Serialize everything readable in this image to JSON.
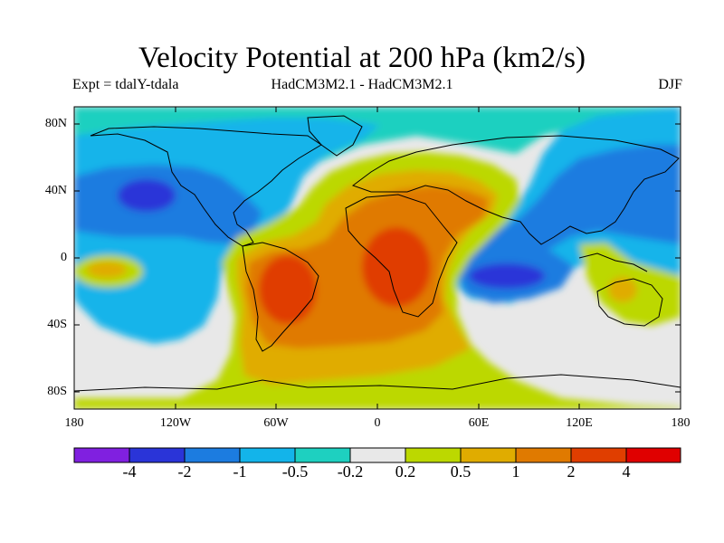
{
  "title": "Velocity Potential at 200 hPa (km2/s)",
  "subtitle_left": "Expt = tdalY-tdala",
  "subtitle_center": "HadCM3M2.1 - HadCM3M2.1",
  "subtitle_right": "DJF",
  "lat_labels": [
    "80N",
    "40N",
    "0",
    "40S",
    "80S"
  ],
  "lon_labels": [
    "180",
    "120W",
    "60W",
    "0",
    "60E",
    "120E",
    "180"
  ],
  "colorbar": {
    "colors": [
      "#8020e0",
      "#2a34d8",
      "#1c7ce0",
      "#13b4ea",
      "#1ed0c0",
      "#e8e8e8",
      "#bcd800",
      "#e0ac00",
      "#e07a00",
      "#e03e00",
      "#e00000"
    ],
    "labels": [
      "-4",
      "-2",
      "-1",
      "-0.5",
      "-0.2",
      "0.2",
      "0.5",
      "1",
      "2",
      "4"
    ]
  },
  "map": {
    "background": "#e8e8e8",
    "levels": [
      {
        "name": "teal",
        "color": "#1ed0c0"
      },
      {
        "name": "cyan",
        "color": "#13b4ea"
      },
      {
        "name": "blue",
        "color": "#1c7ce0"
      },
      {
        "name": "darkblue",
        "color": "#2a34d8"
      },
      {
        "name": "green",
        "color": "#bcd800"
      },
      {
        "name": "yellow",
        "color": "#e0ac00"
      },
      {
        "name": "orange",
        "color": "#e07a00"
      },
      {
        "name": "red",
        "color": "#e03e00"
      }
    ]
  }
}
